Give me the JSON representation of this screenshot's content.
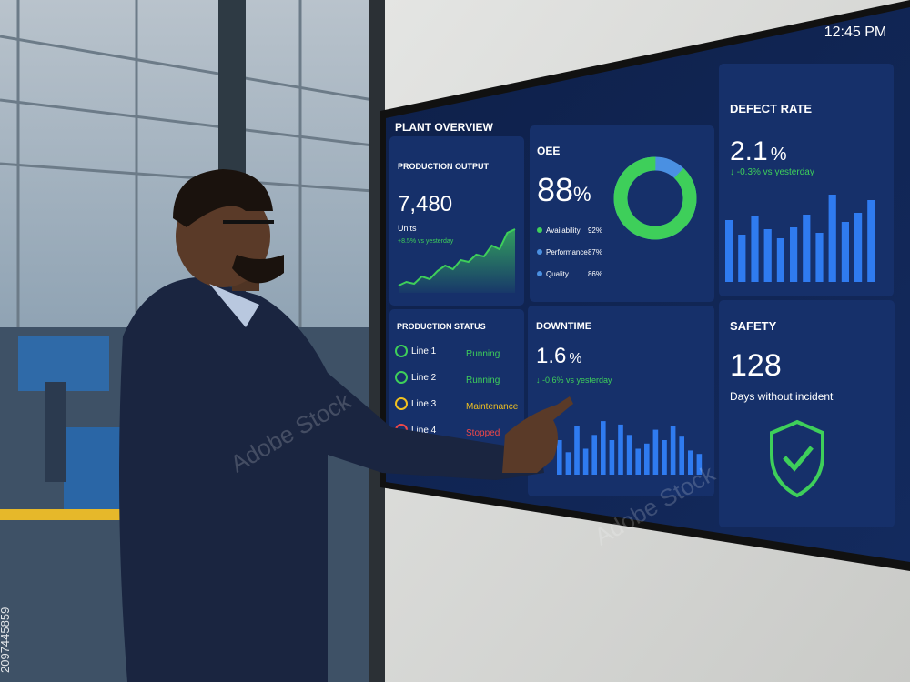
{
  "clock": "12:45 PM",
  "watermark": "Adobe Stock",
  "stock_id": "2097445859",
  "dashboard": {
    "title": "PLANT OVERVIEW",
    "production_output": {
      "title": "PRODUCTION OUTPUT",
      "value": "7,480",
      "unit": "Units",
      "change": "+8.5% vs yesterday",
      "trend": [
        8,
        12,
        10,
        18,
        15,
        24,
        30,
        26,
        36,
        34,
        42,
        40,
        52,
        48,
        66,
        70
      ]
    },
    "oee": {
      "title": "OEE",
      "value": 88,
      "unit": "%",
      "legend": [
        {
          "label": "Availability",
          "value": "92%",
          "color": "#3ecf5a"
        },
        {
          "label": "Performance",
          "value": "87%",
          "color": "#4a90e2"
        },
        {
          "label": "Quality",
          "value": "86%",
          "color": "#4a90e2"
        }
      ]
    },
    "defect_rate": {
      "title": "DEFECT RATE",
      "value": "2.1",
      "unit": "%",
      "change": "↓ -0.3% vs yesterday",
      "bars": [
        68,
        52,
        72,
        58,
        48,
        60,
        74,
        54,
        96,
        66,
        76,
        90
      ]
    },
    "production_status": {
      "title": "PRODUCTION STATUS",
      "lines": [
        {
          "name": "Line 1",
          "state": "Running",
          "color": "#3ecf5a"
        },
        {
          "name": "Line 2",
          "state": "Running",
          "color": "#3ecf5a"
        },
        {
          "name": "Line 3",
          "state": "Maintenance",
          "color": "#f0c020"
        },
        {
          "name": "Line 4",
          "state": "Stopped",
          "color": "#f04848"
        }
      ]
    },
    "downtime": {
      "title": "DOWNTIME",
      "value": "1.6",
      "unit": "%",
      "change": "↓ -0.6% vs yesterday",
      "bars": [
        40,
        26,
        56,
        30,
        46,
        62,
        40,
        58,
        46,
        30,
        36,
        52,
        40,
        56,
        44,
        28,
        24
      ]
    },
    "safety": {
      "title": "SAFETY",
      "value": "128",
      "caption": "Days without incident"
    }
  }
}
